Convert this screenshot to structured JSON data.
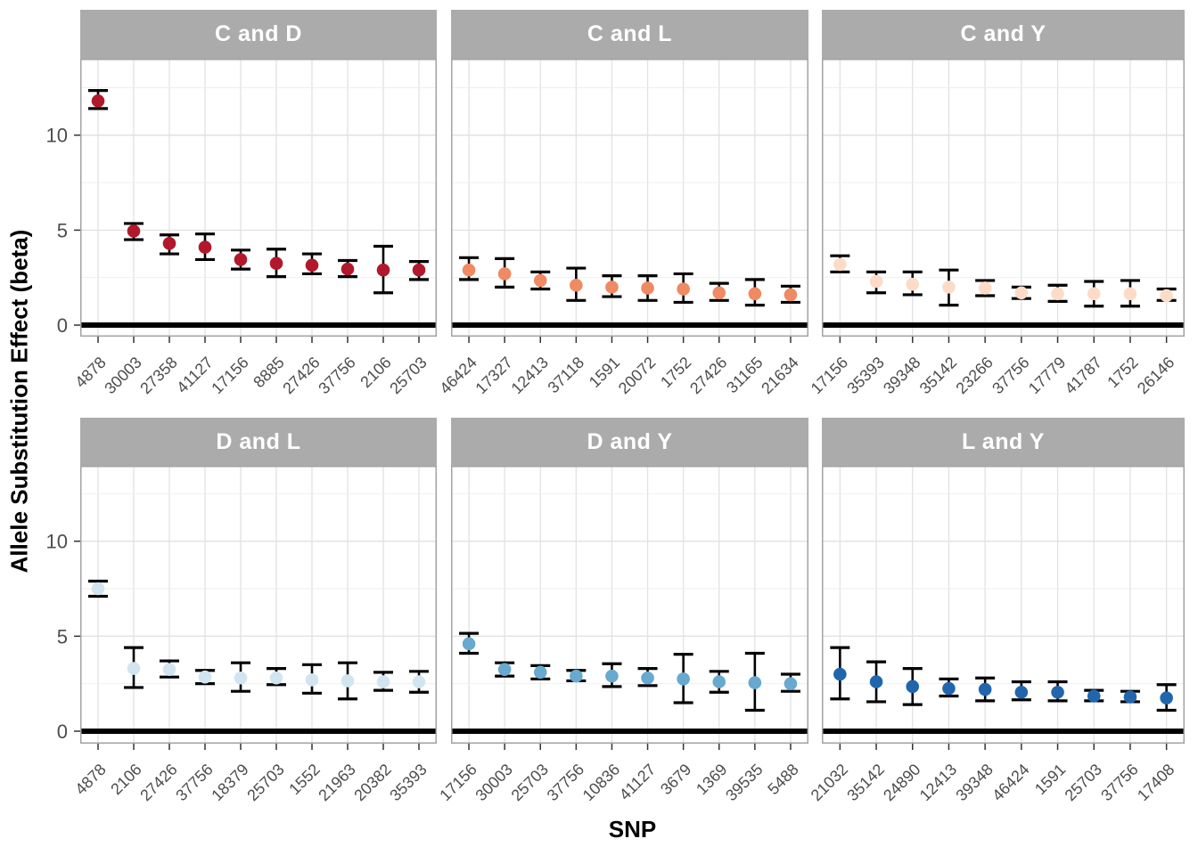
{
  "colors": {
    "strip_background": "#ABABAB",
    "strip_text": "#FFFFFF",
    "panel_background": "#FFFFFF",
    "panel_border": "#A3A3A3",
    "grid_major": "#E2E2E2",
    "grid_minor": "#EDEDED",
    "axis_text": "#4D4D4D",
    "axis_title": "#000000",
    "errorbar": "#000000",
    "zero_line": "#000000"
  },
  "chart_data": {
    "type": "scatter",
    "subtype": "point-with-errorbars-faceted",
    "title": "",
    "xlabel": "SNP",
    "ylabel": "Allele Substitution Effect (beta)",
    "ylim": [
      -0.6,
      14.0
    ],
    "y_major_ticks": [
      0,
      5,
      10
    ],
    "y_minor_gridlines": [
      2.5,
      7.5,
      12.5
    ],
    "zero_reference_line": 0,
    "grid": true,
    "facets": [
      {
        "title": "C and D",
        "point_color": "#B2182B",
        "points": [
          {
            "snp": "4878",
            "beta": 11.8,
            "lower": 11.4,
            "upper": 12.35
          },
          {
            "snp": "30003",
            "beta": 4.95,
            "lower": 4.5,
            "upper": 5.35
          },
          {
            "snp": "27358",
            "beta": 4.3,
            "lower": 3.75,
            "upper": 4.75
          },
          {
            "snp": "41127",
            "beta": 4.1,
            "lower": 3.45,
            "upper": 4.8
          },
          {
            "snp": "17156",
            "beta": 3.45,
            "lower": 2.95,
            "upper": 3.95
          },
          {
            "snp": "8885",
            "beta": 3.25,
            "lower": 2.55,
            "upper": 4.0
          },
          {
            "snp": "27426",
            "beta": 3.15,
            "lower": 2.7,
            "upper": 3.75
          },
          {
            "snp": "37756",
            "beta": 2.95,
            "lower": 2.55,
            "upper": 3.4
          },
          {
            "snp": "2106",
            "beta": 2.9,
            "lower": 1.7,
            "upper": 4.15
          },
          {
            "snp": "25703",
            "beta": 2.9,
            "lower": 2.4,
            "upper": 3.35
          }
        ]
      },
      {
        "title": "C and L",
        "point_color": "#EF8A62",
        "points": [
          {
            "snp": "46424",
            "beta": 2.9,
            "lower": 2.4,
            "upper": 3.55
          },
          {
            "snp": "17327",
            "beta": 2.7,
            "lower": 2.0,
            "upper": 3.5
          },
          {
            "snp": "12413",
            "beta": 2.35,
            "lower": 1.9,
            "upper": 2.8
          },
          {
            "snp": "37118",
            "beta": 2.1,
            "lower": 1.3,
            "upper": 3.0
          },
          {
            "snp": "1591",
            "beta": 2.0,
            "lower": 1.5,
            "upper": 2.6
          },
          {
            "snp": "20072",
            "beta": 1.95,
            "lower": 1.3,
            "upper": 2.6
          },
          {
            "snp": "1752",
            "beta": 1.9,
            "lower": 1.2,
            "upper": 2.7
          },
          {
            "snp": "27426",
            "beta": 1.7,
            "lower": 1.3,
            "upper": 2.2
          },
          {
            "snp": "31165",
            "beta": 1.65,
            "lower": 1.05,
            "upper": 2.4
          },
          {
            "snp": "21634",
            "beta": 1.6,
            "lower": 1.2,
            "upper": 2.05
          }
        ]
      },
      {
        "title": "C and Y",
        "point_color": "#FDDBC7",
        "points": [
          {
            "snp": "17156",
            "beta": 3.2,
            "lower": 2.8,
            "upper": 3.65
          },
          {
            "snp": "35393",
            "beta": 2.3,
            "lower": 1.7,
            "upper": 2.8
          },
          {
            "snp": "39348",
            "beta": 2.15,
            "lower": 1.6,
            "upper": 2.8
          },
          {
            "snp": "35142",
            "beta": 2.0,
            "lower": 1.05,
            "upper": 2.9
          },
          {
            "snp": "23266",
            "beta": 1.95,
            "lower": 1.55,
            "upper": 2.35
          },
          {
            "snp": "37756",
            "beta": 1.7,
            "lower": 1.4,
            "upper": 2.0
          },
          {
            "snp": "17779",
            "beta": 1.65,
            "lower": 1.25,
            "upper": 2.1
          },
          {
            "snp": "41787",
            "beta": 1.65,
            "lower": 1.0,
            "upper": 2.3
          },
          {
            "snp": "1752",
            "beta": 1.65,
            "lower": 1.0,
            "upper": 2.35
          },
          {
            "snp": "26146",
            "beta": 1.55,
            "lower": 1.3,
            "upper": 1.9
          }
        ]
      },
      {
        "title": "D and L",
        "point_color": "#D1E5F0",
        "points": [
          {
            "snp": "4878",
            "beta": 7.5,
            "lower": 7.1,
            "upper": 7.9
          },
          {
            "snp": "2106",
            "beta": 3.3,
            "lower": 2.3,
            "upper": 4.4
          },
          {
            "snp": "27426",
            "beta": 3.25,
            "lower": 2.85,
            "upper": 3.7
          },
          {
            "snp": "37756",
            "beta": 2.85,
            "lower": 2.5,
            "upper": 3.2
          },
          {
            "snp": "18379",
            "beta": 2.8,
            "lower": 2.1,
            "upper": 3.6
          },
          {
            "snp": "25703",
            "beta": 2.8,
            "lower": 2.45,
            "upper": 3.3
          },
          {
            "snp": "1552",
            "beta": 2.7,
            "lower": 2.0,
            "upper": 3.5
          },
          {
            "snp": "21963",
            "beta": 2.65,
            "lower": 1.7,
            "upper": 3.6
          },
          {
            "snp": "20382",
            "beta": 2.6,
            "lower": 2.15,
            "upper": 3.1
          },
          {
            "snp": "35393",
            "beta": 2.6,
            "lower": 2.05,
            "upper": 3.15
          }
        ]
      },
      {
        "title": "D and Y",
        "point_color": "#67A9CF",
        "points": [
          {
            "snp": "17156",
            "beta": 4.6,
            "lower": 4.1,
            "upper": 5.15
          },
          {
            "snp": "30003",
            "beta": 3.25,
            "lower": 2.9,
            "upper": 3.6
          },
          {
            "snp": "25703",
            "beta": 3.1,
            "lower": 2.75,
            "upper": 3.45
          },
          {
            "snp": "37756",
            "beta": 2.9,
            "lower": 2.65,
            "upper": 3.2
          },
          {
            "snp": "10836",
            "beta": 2.9,
            "lower": 2.35,
            "upper": 3.55
          },
          {
            "snp": "41127",
            "beta": 2.8,
            "lower": 2.4,
            "upper": 3.3
          },
          {
            "snp": "3679",
            "beta": 2.75,
            "lower": 1.5,
            "upper": 4.05
          },
          {
            "snp": "1369",
            "beta": 2.6,
            "lower": 2.05,
            "upper": 3.15
          },
          {
            "snp": "39535",
            "beta": 2.55,
            "lower": 1.1,
            "upper": 4.1
          },
          {
            "snp": "5488",
            "beta": 2.5,
            "lower": 2.1,
            "upper": 3.0
          }
        ]
      },
      {
        "title": "L and Y",
        "point_color": "#2166AC",
        "points": [
          {
            "snp": "21032",
            "beta": 3.0,
            "lower": 1.7,
            "upper": 4.4
          },
          {
            "snp": "35142",
            "beta": 2.6,
            "lower": 1.55,
            "upper": 3.65
          },
          {
            "snp": "24890",
            "beta": 2.35,
            "lower": 1.4,
            "upper": 3.3
          },
          {
            "snp": "12413",
            "beta": 2.25,
            "lower": 1.85,
            "upper": 2.75
          },
          {
            "snp": "39348",
            "beta": 2.2,
            "lower": 1.6,
            "upper": 2.8
          },
          {
            "snp": "46424",
            "beta": 2.05,
            "lower": 1.65,
            "upper": 2.6
          },
          {
            "snp": "1591",
            "beta": 2.05,
            "lower": 1.6,
            "upper": 2.6
          },
          {
            "snp": "25703",
            "beta": 1.85,
            "lower": 1.6,
            "upper": 2.15
          },
          {
            "snp": "37756",
            "beta": 1.8,
            "lower": 1.55,
            "upper": 2.1
          },
          {
            "snp": "17408",
            "beta": 1.75,
            "lower": 1.1,
            "upper": 2.45
          }
        ]
      }
    ]
  }
}
